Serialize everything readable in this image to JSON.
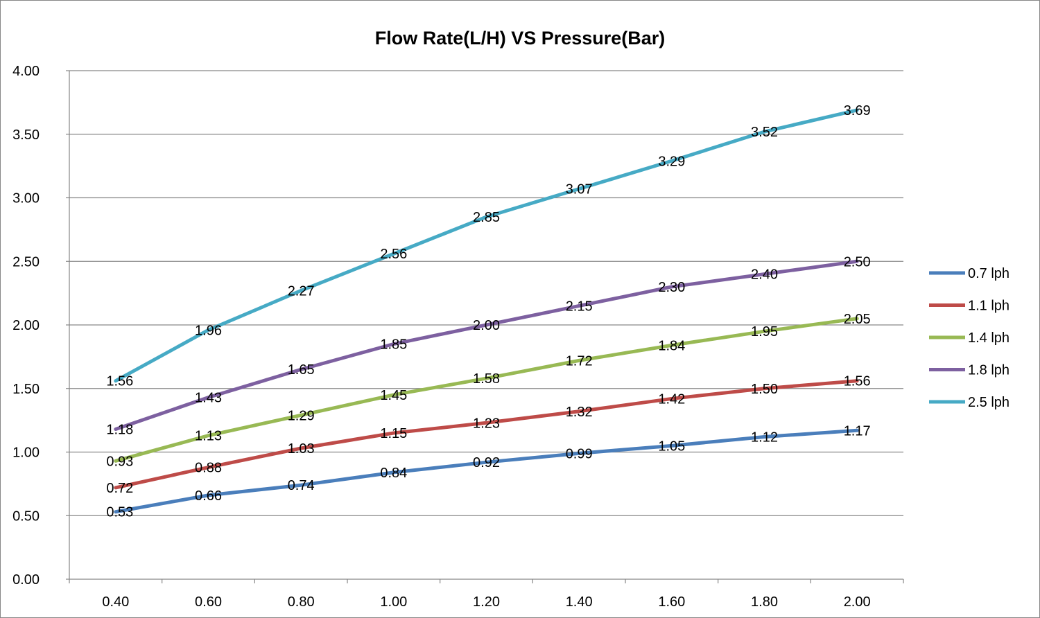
{
  "chart_data": {
    "type": "line",
    "title": "Flow Rate(L/H) VS Pressure(Bar)",
    "xlabel": "",
    "ylabel": "",
    "x": [
      "0.40",
      "0.60",
      "0.80",
      "1.00",
      "1.20",
      "1.40",
      "1.60",
      "1.80",
      "2.00"
    ],
    "y_ticks": [
      "0.00",
      "0.50",
      "1.00",
      "1.50",
      "2.00",
      "2.50",
      "3.00",
      "3.50",
      "4.00"
    ],
    "ylim": [
      0,
      4
    ],
    "grid": true,
    "legend_position": "right",
    "series": [
      {
        "name": "0.7 lph",
        "color": "#4a7ebb",
        "values": [
          0.53,
          0.66,
          0.74,
          0.84,
          0.92,
          0.99,
          1.05,
          1.12,
          1.17
        ]
      },
      {
        "name": "1.1 lph",
        "color": "#be4b48",
        "values": [
          0.72,
          0.88,
          1.03,
          1.15,
          1.23,
          1.32,
          1.42,
          1.5,
          1.56
        ]
      },
      {
        "name": "1.4 lph",
        "color": "#98b954",
        "values": [
          0.93,
          1.13,
          1.29,
          1.45,
          1.58,
          1.72,
          1.84,
          1.95,
          2.05
        ]
      },
      {
        "name": "1.8 lph",
        "color": "#7d60a0",
        "values": [
          1.18,
          1.43,
          1.65,
          1.85,
          2.0,
          2.15,
          2.3,
          2.4,
          2.5
        ]
      },
      {
        "name": "2.5 lph",
        "color": "#46aac5",
        "values": [
          1.56,
          1.96,
          2.27,
          2.56,
          2.85,
          3.07,
          3.29,
          3.52,
          3.69
        ]
      }
    ]
  }
}
